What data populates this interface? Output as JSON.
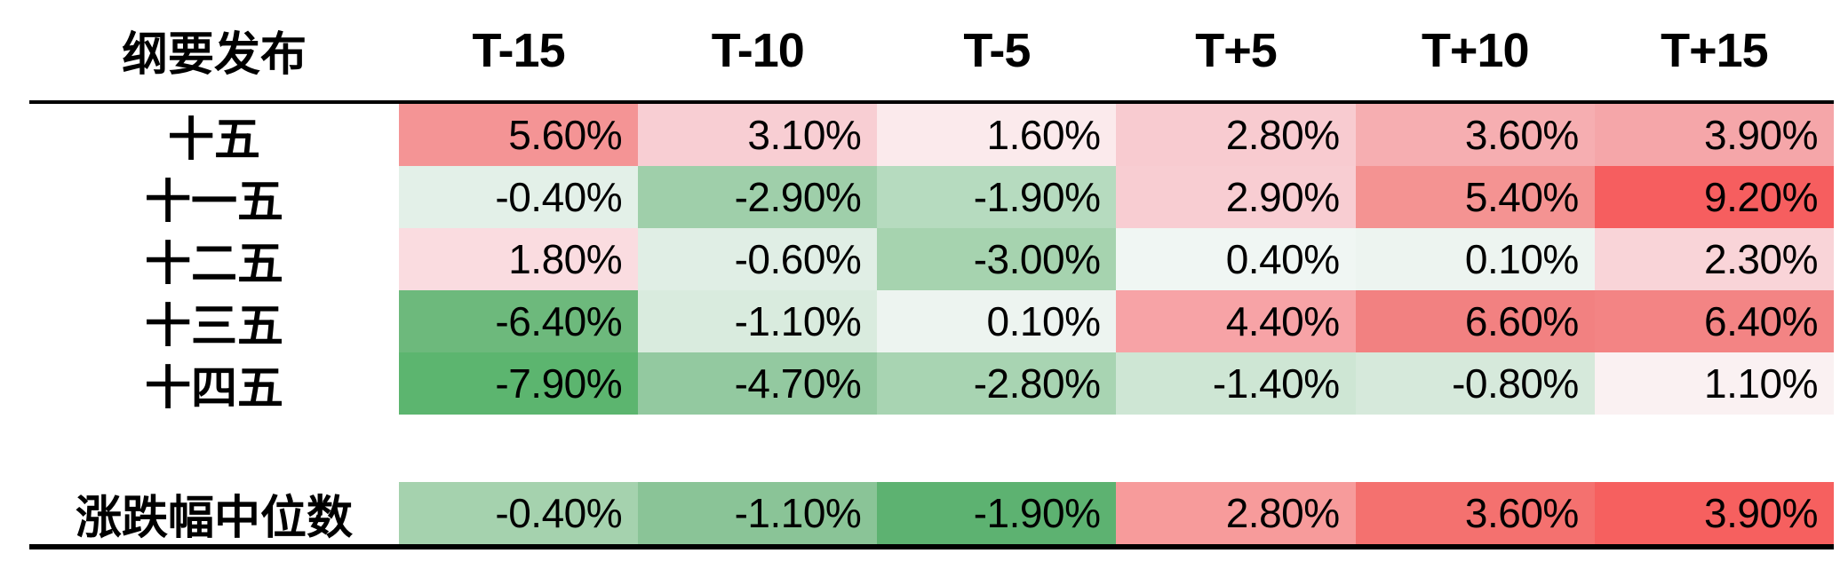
{
  "table": {
    "header": {
      "label": "纲要发布",
      "columns": [
        "T-15",
        "T-10",
        "T-5",
        "T+5",
        "T+10",
        "T+15"
      ]
    },
    "rows": [
      {
        "label": "十五",
        "cells": [
          {
            "text": "5.60%",
            "bg": "#F49495"
          },
          {
            "text": "3.10%",
            "bg": "#F8CED3"
          },
          {
            "text": "1.60%",
            "bg": "#FBEAEC"
          },
          {
            "text": "2.80%",
            "bg": "#F8CBD0"
          },
          {
            "text": "3.60%",
            "bg": "#F6AEB1"
          },
          {
            "text": "3.90%",
            "bg": "#F5A6A9"
          }
        ]
      },
      {
        "label": "十一五",
        "cells": [
          {
            "text": "-0.40%",
            "bg": "#E3F0E8"
          },
          {
            "text": "-2.90%",
            "bg": "#9FCFAA"
          },
          {
            "text": "-1.90%",
            "bg": "#B6DBBF"
          },
          {
            "text": "2.90%",
            "bg": "#F8CDD2"
          },
          {
            "text": "5.40%",
            "bg": "#F49392"
          },
          {
            "text": "9.20%",
            "bg": "#F65E5F"
          }
        ]
      },
      {
        "label": "十二五",
        "cells": [
          {
            "text": "1.80%",
            "bg": "#FADCE0"
          },
          {
            "text": "-0.60%",
            "bg": "#E0EEE5"
          },
          {
            "text": "-3.00%",
            "bg": "#A6D3AF"
          },
          {
            "text": "0.40%",
            "bg": "#F0F6F3"
          },
          {
            "text": "0.10%",
            "bg": "#EDF4F0"
          },
          {
            "text": "2.30%",
            "bg": "#F9D4D8"
          }
        ]
      },
      {
        "label": "十三五",
        "cells": [
          {
            "text": "-6.40%",
            "bg": "#6DB97C"
          },
          {
            "text": "-1.10%",
            "bg": "#D9EBDE"
          },
          {
            "text": "0.10%",
            "bg": "#EDF4F0"
          },
          {
            "text": "4.40%",
            "bg": "#F7A3A6"
          },
          {
            "text": "6.60%",
            "bg": "#F28181"
          },
          {
            "text": "6.40%",
            "bg": "#F38484"
          }
        ]
      },
      {
        "label": "十四五",
        "cells": [
          {
            "text": "-7.90%",
            "bg": "#5CB56F"
          },
          {
            "text": "-4.70%",
            "bg": "#93C9A0"
          },
          {
            "text": "-2.80%",
            "bg": "#A8D4B2"
          },
          {
            "text": "-1.40%",
            "bg": "#CEE6D4"
          },
          {
            "text": "-0.80%",
            "bg": "#D6E9DB"
          },
          {
            "text": "1.10%",
            "bg": "#FAF1F2"
          }
        ]
      }
    ],
    "summary_row": {
      "label": "涨跌幅中位数",
      "cells": [
        {
          "text": "-0.40%",
          "bg": "#A5D2AE"
        },
        {
          "text": "-1.10%",
          "bg": "#8AC497"
        },
        {
          "text": "-1.90%",
          "bg": "#5DB271"
        },
        {
          "text": "2.80%",
          "bg": "#F79B9B"
        },
        {
          "text": "3.60%",
          "bg": "#F4716F"
        },
        {
          "text": "3.90%",
          "bg": "#F6605F"
        }
      ]
    }
  },
  "chart_data": {
    "type": "heatmap",
    "title": "",
    "row_label_header": "纲要发布",
    "columns": [
      "T-15",
      "T-10",
      "T-5",
      "T+5",
      "T+10",
      "T+15"
    ],
    "rows": [
      "十五",
      "十一五",
      "十二五",
      "十三五",
      "十四五"
    ],
    "values": [
      [
        5.6,
        3.1,
        1.6,
        2.8,
        3.6,
        3.9
      ],
      [
        -0.4,
        -2.9,
        -1.9,
        2.9,
        5.4,
        9.2
      ],
      [
        1.8,
        -0.6,
        -3.0,
        0.4,
        0.1,
        2.3
      ],
      [
        -6.4,
        -1.1,
        0.1,
        4.4,
        6.6,
        6.4
      ],
      [
        -7.9,
        -4.7,
        -2.8,
        -1.4,
        -0.8,
        1.1
      ]
    ],
    "summary": {
      "label": "涨跌幅中位数",
      "values": [
        -0.4,
        -1.1,
        -1.9,
        2.8,
        3.6,
        3.9
      ]
    },
    "unit": "%",
    "legend_position": "none",
    "grid": false,
    "palette": {
      "positive_max": "#F65E5F",
      "negative_max": "#5CB56F",
      "neutral": "#FFFFFF"
    }
  }
}
